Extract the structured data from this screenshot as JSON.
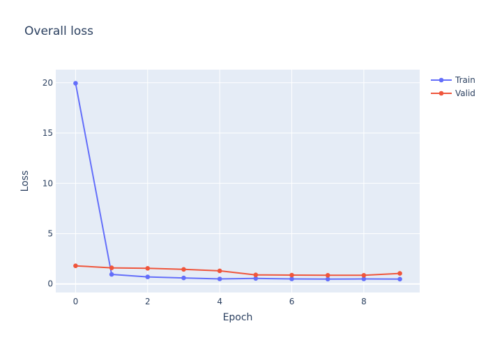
{
  "chart_data": {
    "type": "line",
    "title": "Overall loss",
    "xlabel": "Epoch",
    "ylabel": "Loss",
    "xlim": [
      -0.55,
      9.55
    ],
    "ylim": [
      -0.85,
      21.3
    ],
    "x_ticks": [
      0,
      2,
      4,
      6,
      8
    ],
    "x_tick_labels": [
      "0",
      "2",
      "4",
      "6",
      "8"
    ],
    "y_ticks": [
      0,
      5,
      10,
      15,
      20
    ],
    "y_tick_labels": [
      "0",
      "5",
      "10",
      "15",
      "20"
    ],
    "grid": true,
    "legend_position": "top-right",
    "x": [
      0,
      1,
      2,
      3,
      4,
      5,
      6,
      7,
      8,
      9
    ],
    "series": [
      {
        "name": "Train",
        "color": "#636efa",
        "values": [
          19.95,
          0.95,
          0.7,
          0.6,
          0.5,
          0.55,
          0.5,
          0.48,
          0.5,
          0.48
        ]
      },
      {
        "name": "Valid",
        "color": "#ef553b",
        "values": [
          1.8,
          1.6,
          1.55,
          1.45,
          1.3,
          0.9,
          0.88,
          0.86,
          0.86,
          1.05
        ]
      }
    ]
  }
}
